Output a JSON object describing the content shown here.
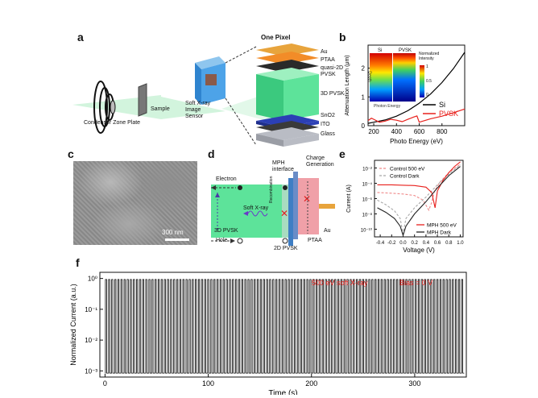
{
  "panels": {
    "a": {
      "label": "a",
      "title": "One Pixel",
      "left_labels": {
        "optic": "Condenser Zone Plate",
        "sample": "Sample",
        "sensor": "Soft X-ray\nImage Sensor"
      },
      "layers": [
        "Au",
        "PTAA",
        "quasi-2D PVSK",
        "3D PVSK",
        "SnO2",
        "ITO",
        "Glass"
      ],
      "colors": {
        "au": "#e8a43c",
        "ptaa": "#f28c28",
        "q2d": "#2a2a2a",
        "pvsk3d": "#5de39a",
        "sno2": "#2b3fb5",
        "ito": "#3a3a3a",
        "glass": "#b9bcc4"
      }
    },
    "b": {
      "label": "b",
      "inset": {
        "left": "Si",
        "right": "PVSK",
        "cbar_title": "Normalized Intensity",
        "cbar_ticks": [
          "1",
          "0.5",
          "0"
        ],
        "arrow_y": "Depth",
        "arrow_x": "Photon Energy"
      }
    },
    "c": {
      "label": "c",
      "scalebar": "300 nm"
    },
    "d": {
      "label": "d",
      "labels": {
        "electron": "Electron",
        "hole": "Hole",
        "mph": "MPH interface",
        "charge": "Charge Generation",
        "softxray": "Soft X-ray",
        "recomb": "Recombination",
        "pvsk3d": "3D PVSK",
        "pvsk2d": "2D PVSK",
        "ptaa": "PTAA",
        "au": "Au"
      }
    },
    "e": {
      "label": "e"
    },
    "f": {
      "label": "f",
      "annotation_left": "500 eV soft X-ray",
      "annotation_right": "Bias = 0 V"
    }
  },
  "chart_data": [
    {
      "id": "b",
      "type": "line",
      "xlabel": "Photo Energy (eV)",
      "ylabel": "Attenuation Length (μm)",
      "xlim": [
        150,
        1000
      ],
      "ylim": [
        0,
        2.8
      ],
      "xticks": [
        200,
        400,
        600,
        800
      ],
      "yticks": [
        0,
        1,
        2
      ],
      "series": [
        {
          "name": "Si",
          "color": "#000000",
          "x": [
            150,
            200,
            300,
            400,
            500,
            600,
            700,
            800,
            900,
            1000
          ],
          "y": [
            0.08,
            0.12,
            0.2,
            0.33,
            0.52,
            0.78,
            1.1,
            1.5,
            1.98,
            2.55
          ]
        },
        {
          "name": "PVSK",
          "color": "#e8201c",
          "x": [
            150,
            180,
            200,
            250,
            300,
            350,
            400,
            450,
            500,
            550,
            580,
            600,
            650,
            700,
            800,
            900,
            1000
          ],
          "y": [
            0.18,
            0.26,
            0.22,
            0.12,
            0.16,
            0.22,
            0.19,
            0.14,
            0.22,
            0.3,
            0.34,
            0.12,
            0.18,
            0.24,
            0.33,
            0.45,
            0.58
          ]
        }
      ]
    },
    {
      "id": "e",
      "type": "line",
      "xlabel": "Voltage (V)",
      "ylabel": "Current (A)",
      "xlim": [
        -0.5,
        1.05
      ],
      "ylog_range": [
        -11,
        -1
      ],
      "xticks": [
        "-0.4",
        "-0.2",
        "0.0",
        "0.2",
        "0.4",
        "0.6",
        "0.8",
        "1.0"
      ],
      "xtick_values": [
        -0.4,
        -0.2,
        0.0,
        0.2,
        0.4,
        0.6,
        0.8,
        1.0
      ],
      "yticks": [
        "10⁻¹⁰",
        "10⁻⁸",
        "10⁻⁶",
        "10⁻⁴",
        "10⁻²"
      ],
      "ytick_values": [
        -10,
        -8,
        -6,
        -4,
        -2
      ],
      "series": [
        {
          "name": "Control 500 eV",
          "color": "#f08a8a",
          "dash": true,
          "x": [
            -0.45,
            -0.2,
            0.0,
            0.2,
            0.35,
            0.45,
            0.5,
            0.55,
            0.65,
            0.8,
            1.0
          ],
          "y": [
            -5.2,
            -5.3,
            -5.4,
            -5.6,
            -6.2,
            -7.5,
            -6.5,
            -5.0,
            -3.8,
            -2.6,
            -1.5
          ]
        },
        {
          "name": "Control Dark",
          "color": "#a8a8a8",
          "dash": true,
          "x": [
            -0.45,
            -0.3,
            -0.15,
            -0.05,
            0.0,
            0.05,
            0.2,
            0.4,
            0.6,
            0.8,
            1.0
          ],
          "y": [
            -6.2,
            -6.8,
            -7.6,
            -8.6,
            -10.6,
            -8.6,
            -7.2,
            -5.8,
            -4.2,
            -2.8,
            -1.6
          ]
        },
        {
          "name": "MPH 500 eV",
          "color": "#e8201c",
          "dash": false,
          "x": [
            -0.45,
            -0.2,
            0.0,
            0.2,
            0.4,
            0.5,
            0.56,
            0.6,
            0.7,
            0.8,
            0.9,
            1.0
          ],
          "y": [
            -4.2,
            -4.2,
            -4.25,
            -4.3,
            -4.5,
            -5.2,
            -7.2,
            -5.0,
            -3.6,
            -2.6,
            -1.8,
            -1.2
          ]
        },
        {
          "name": "MPH Dark",
          "color": "#222222",
          "dash": false,
          "x": [
            -0.45,
            -0.3,
            -0.15,
            -0.05,
            0.0,
            0.05,
            0.2,
            0.4,
            0.6,
            0.8,
            1.0
          ],
          "y": [
            -7.2,
            -7.8,
            -8.6,
            -9.6,
            -10.8,
            -9.6,
            -8.0,
            -6.4,
            -4.6,
            -3.0,
            -1.8
          ]
        }
      ]
    },
    {
      "id": "f",
      "type": "line",
      "xlabel": "Time (s)",
      "ylabel": "Normalized Current (a.u.)",
      "xlim": [
        -5,
        350
      ],
      "ylog_range": [
        -3.2,
        0.2
      ],
      "xticks": [
        0,
        100,
        200,
        300
      ],
      "yticks": [
        "10⁻³",
        "10⁻²",
        "10⁻¹",
        "10⁰"
      ],
      "ytick_values": [
        -3,
        -2,
        -1,
        0
      ],
      "pulse_period_s": 3.0,
      "pulse_count": 116,
      "on_level": 0.93,
      "off_level": 0.00085,
      "color": "#000000"
    }
  ]
}
